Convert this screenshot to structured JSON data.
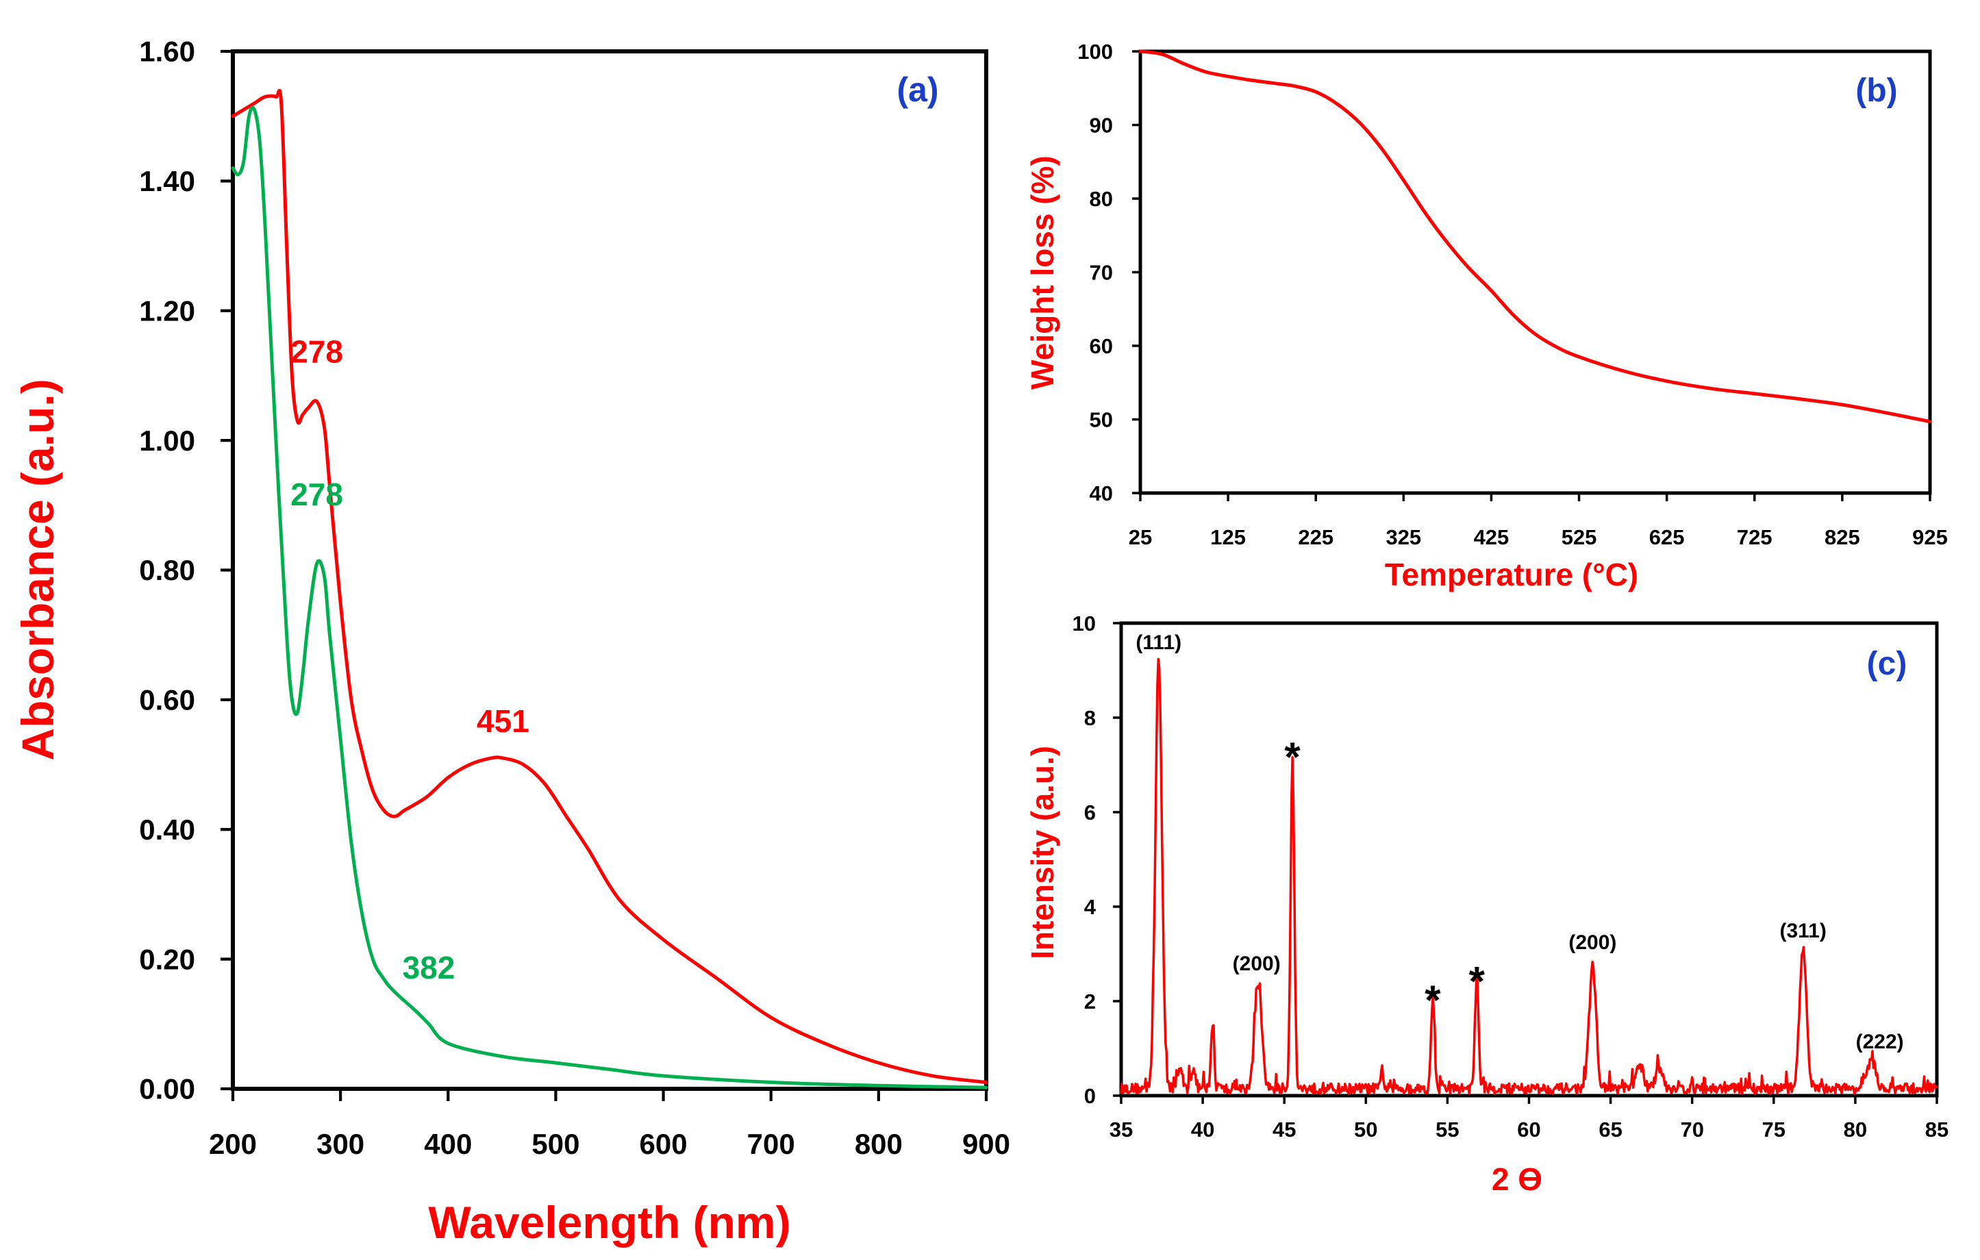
{
  "colors": {
    "red": "#ff0000",
    "green": "#00b050",
    "panel_tag": "#1a3fc4",
    "axis": "#000000"
  },
  "chart_data": [
    {
      "id": "a",
      "type": "line",
      "panel_label": "(a)",
      "xlabel": "Wavelength (nm)",
      "ylabel": "Absorbance (a.u.)",
      "xlim": [
        200,
        900
      ],
      "ylim": [
        0,
        1.6
      ],
      "xticks": [
        "200",
        "300",
        "400",
        "500",
        "600",
        "700",
        "800",
        "900"
      ],
      "xtick_values": [
        200,
        300,
        400,
        500,
        600,
        700,
        800,
        900
      ],
      "yticks": [
        "0.00",
        "0.20",
        "0.40",
        "0.60",
        "0.80",
        "1.00",
        "1.20",
        "1.40",
        "1.60"
      ],
      "ytick_values": [
        0,
        0.2,
        0.4,
        0.6,
        0.8,
        1.0,
        1.2,
        1.4,
        1.6
      ],
      "series": [
        {
          "name": "red curve",
          "color": "#ff0000",
          "x": [
            200,
            210,
            220,
            230,
            240,
            245,
            250,
            255,
            260,
            265,
            270,
            278,
            285,
            290,
            300,
            310,
            320,
            330,
            340,
            350,
            360,
            380,
            400,
            420,
            440,
            451,
            470,
            490,
            510,
            530,
            560,
            600,
            650,
            700,
            750,
            800,
            850,
            900
          ],
          "y": [
            1.5,
            1.51,
            1.52,
            1.53,
            1.53,
            1.52,
            1.3,
            1.1,
            1.03,
            1.04,
            1.05,
            1.06,
            1.02,
            0.93,
            0.75,
            0.6,
            0.52,
            0.46,
            0.43,
            0.42,
            0.43,
            0.45,
            0.48,
            0.5,
            0.51,
            0.51,
            0.5,
            0.47,
            0.42,
            0.37,
            0.29,
            0.23,
            0.17,
            0.11,
            0.07,
            0.04,
            0.02,
            0.01
          ]
        },
        {
          "name": "green curve",
          "color": "#00b050",
          "x": [
            200,
            205,
            210,
            215,
            220,
            225,
            230,
            240,
            250,
            255,
            260,
            265,
            270,
            278,
            285,
            290,
            300,
            310,
            320,
            330,
            340,
            350,
            370,
            382,
            400,
            450,
            500,
            550,
            600,
            700,
            800,
            900
          ],
          "y": [
            1.42,
            1.41,
            1.43,
            1.5,
            1.51,
            1.46,
            1.33,
            1.0,
            0.7,
            0.6,
            0.58,
            0.64,
            0.72,
            0.81,
            0.79,
            0.7,
            0.54,
            0.38,
            0.27,
            0.2,
            0.17,
            0.15,
            0.12,
            0.1,
            0.07,
            0.05,
            0.04,
            0.03,
            0.02,
            0.01,
            0.005,
            0.002
          ]
        }
      ],
      "annotations": [
        {
          "text": "278",
          "color": "#ff0000",
          "x": 278,
          "y": 1.12
        },
        {
          "text": "278",
          "color": "#00b050",
          "x": 278,
          "y": 0.9
        },
        {
          "text": "451",
          "color": "#ff0000",
          "x": 451,
          "y": 0.55
        },
        {
          "text": "382",
          "color": "#00b050",
          "x": 382,
          "y": 0.17
        }
      ]
    },
    {
      "id": "b",
      "type": "line",
      "panel_label": "(b)",
      "xlabel": "Temperature (°C)",
      "ylabel": "Weight loss (%)",
      "xlim": [
        25,
        925
      ],
      "ylim": [
        40,
        100
      ],
      "xticks": [
        "25",
        "125",
        "225",
        "325",
        "425",
        "525",
        "625",
        "725",
        "825",
        "925"
      ],
      "xtick_values": [
        25,
        125,
        225,
        325,
        425,
        525,
        625,
        725,
        825,
        925
      ],
      "yticks": [
        "40",
        "50",
        "60",
        "70",
        "80",
        "90",
        "100"
      ],
      "ytick_values": [
        40,
        50,
        60,
        70,
        80,
        90,
        100
      ],
      "series": [
        {
          "name": "weight loss",
          "color": "#ff0000",
          "x": [
            25,
            50,
            75,
            100,
            125,
            150,
            175,
            200,
            225,
            250,
            275,
            300,
            325,
            350,
            375,
            400,
            425,
            450,
            475,
            500,
            525,
            575,
            625,
            675,
            725,
            775,
            825,
            875,
            925
          ],
          "y": [
            100,
            99.6,
            98.3,
            97.2,
            96.6,
            96.1,
            95.7,
            95.3,
            94.5,
            92.8,
            90.3,
            86.8,
            82.5,
            78,
            74,
            70.5,
            67.5,
            64.2,
            61.6,
            59.8,
            58.5,
            56.6,
            55.2,
            54.2,
            53.5,
            52.8,
            52,
            50.9,
            49.7
          ]
        }
      ]
    },
    {
      "id": "c",
      "type": "line",
      "panel_label": "(c)",
      "xlabel": "2 ϴ",
      "ylabel": "Intensity (a.u.)",
      "xlim": [
        35,
        85
      ],
      "ylim": [
        0,
        10
      ],
      "xticks": [
        "35",
        "40",
        "45",
        "50",
        "55",
        "60",
        "65",
        "70",
        "75",
        "80",
        "85"
      ],
      "xtick_values": [
        35,
        40,
        45,
        50,
        55,
        60,
        65,
        70,
        75,
        80,
        85
      ],
      "yticks": [
        "0",
        "2",
        "4",
        "6",
        "8",
        "10"
      ],
      "ytick_values": [
        0,
        2,
        4,
        6,
        8,
        10
      ],
      "series": [
        {
          "name": "XRD pattern",
          "color": "#ff0000",
          "baseline": 0.15,
          "peaks": [
            {
              "x": 37.3,
              "y": 9.1,
              "w": 0.28
            },
            {
              "x": 38.6,
              "y": 0.45,
              "w": 0.2
            },
            {
              "x": 39.4,
              "y": 0.4,
              "w": 0.2
            },
            {
              "x": 40.6,
              "y": 1.4,
              "w": 0.13
            },
            {
              "x": 43.4,
              "y": 2.25,
              "w": 0.3
            },
            {
              "x": 45.5,
              "y": 7.05,
              "w": 0.16
            },
            {
              "x": 51.0,
              "y": 0.45,
              "w": 0.1
            },
            {
              "x": 54.1,
              "y": 1.95,
              "w": 0.14
            },
            {
              "x": 56.8,
              "y": 2.35,
              "w": 0.16
            },
            {
              "x": 63.9,
              "y": 2.6,
              "w": 0.3
            },
            {
              "x": 66.8,
              "y": 0.5,
              "w": 0.3
            },
            {
              "x": 68.0,
              "y": 0.45,
              "w": 0.3
            },
            {
              "x": 76.8,
              "y": 3.0,
              "w": 0.3
            },
            {
              "x": 81.0,
              "y": 0.6,
              "w": 0.35
            }
          ]
        }
      ],
      "annotations": [
        {
          "text": "(111)",
          "color": "#000000",
          "x": 37.3,
          "y": 9.45,
          "kind": "hkl"
        },
        {
          "text": "(200)",
          "color": "#000000",
          "x": 43.3,
          "y": 2.65,
          "kind": "hkl"
        },
        {
          "text": "*",
          "color": "#000000",
          "x": 45.5,
          "y": 7.35,
          "kind": "star"
        },
        {
          "text": "*",
          "color": "#000000",
          "x": 54.1,
          "y": 2.2,
          "kind": "star"
        },
        {
          "text": "*",
          "color": "#000000",
          "x": 56.8,
          "y": 2.6,
          "kind": "star"
        },
        {
          "text": "(200)",
          "color": "#000000",
          "x": 63.9,
          "y": 3.1,
          "kind": "hkl"
        },
        {
          "text": "(311)",
          "color": "#000000",
          "x": 76.8,
          "y": 3.35,
          "kind": "hkl"
        },
        {
          "text": "(222)",
          "color": "#000000",
          "x": 81.5,
          "y": 1.0,
          "kind": "hkl"
        }
      ]
    }
  ]
}
